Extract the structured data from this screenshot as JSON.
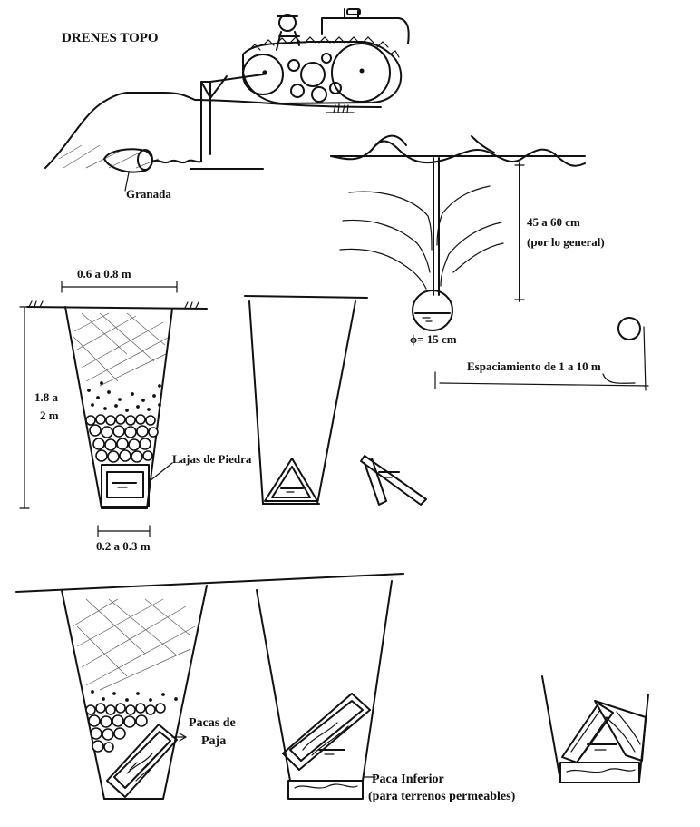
{
  "title": "DRENES TOPO",
  "labels": {
    "granada": "Granada",
    "depth": "45 a 60 cm",
    "depth_note": "(por lo general)",
    "diameter": "ϕ= 15 cm",
    "spacing": "Espaciamiento de 1 a 10 m",
    "top_width": "0.6 a 0.8 m",
    "trench_depth_1": "1.8 a",
    "trench_depth_2": "2 m",
    "bottom_width": "0.2 a 0.3 m",
    "lajas": "Lajas de Piedra",
    "pacas_1": "Pacas de",
    "pacas_2": "Paja",
    "paca_inferior": "Paca Inferior",
    "paca_note": "(para terrenos permeables)"
  }
}
